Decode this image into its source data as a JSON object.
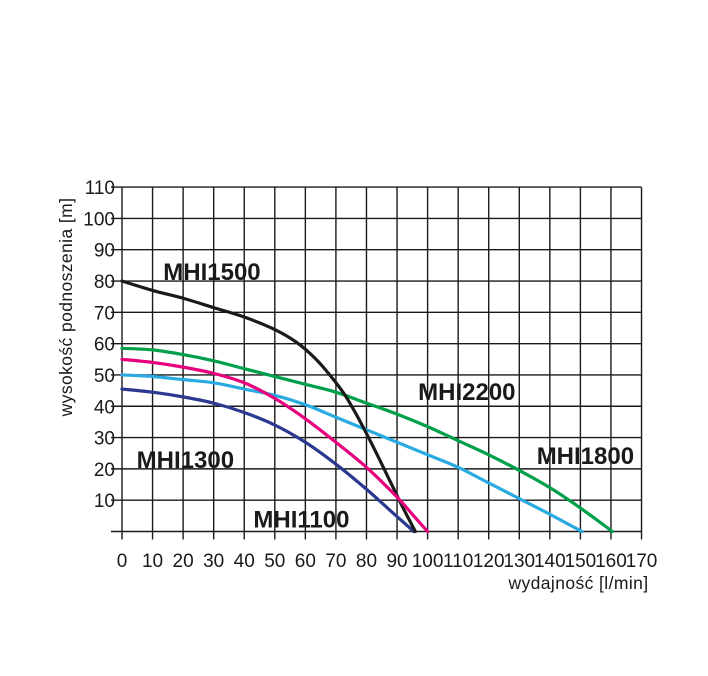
{
  "page": {
    "background": "#ffffff",
    "text_color": "#1a1a1a",
    "grid_color": "#1a1a1a"
  },
  "chart_data": {
    "type": "line",
    "title": "",
    "xlabel": "wydajność [l/min]",
    "ylabel": "wysokość podnoszenia [m]",
    "xlim": [
      0,
      170
    ],
    "ylim": [
      0,
      110
    ],
    "x_ticks": [
      0,
      10,
      20,
      30,
      40,
      50,
      60,
      70,
      80,
      90,
      100,
      110,
      120,
      130,
      140,
      150,
      160,
      170
    ],
    "y_ticks": [
      10,
      20,
      30,
      40,
      50,
      60,
      70,
      80,
      90,
      100,
      110
    ],
    "grid": true,
    "legend_position": "labels-on-curves",
    "series": [
      {
        "name": "MHI1100",
        "color": "#2b3990",
        "label_anchor": {
          "x": 43.0,
          "y": 1.2
        },
        "points": [
          [
            0,
            45.5
          ],
          [
            10,
            44.5
          ],
          [
            20,
            43
          ],
          [
            30,
            41
          ],
          [
            40,
            38
          ],
          [
            50,
            34
          ],
          [
            60,
            28.5
          ],
          [
            70,
            21.5
          ],
          [
            80,
            13.5
          ],
          [
            88,
            6.5
          ],
          [
            95.5,
            0
          ]
        ]
      },
      {
        "name": "MHI2200",
        "color": "#00a04a",
        "label_anchor": {
          "x": 96.9,
          "y": 42.0
        },
        "points": [
          [
            0,
            58.5
          ],
          [
            10,
            58
          ],
          [
            20,
            56.5
          ],
          [
            30,
            54.5
          ],
          [
            40,
            52
          ],
          [
            50,
            49.5
          ],
          [
            60,
            47
          ],
          [
            70,
            44.5
          ],
          [
            80,
            41
          ],
          [
            90,
            37.5
          ],
          [
            100,
            33.5
          ],
          [
            110,
            29
          ],
          [
            120,
            24.5
          ],
          [
            130,
            19.5
          ],
          [
            140,
            14
          ],
          [
            150,
            7.5
          ],
          [
            160.5,
            0
          ]
        ]
      },
      {
        "name": "MHI1800",
        "color": "#29abe2",
        "label_anchor": {
          "x": 135.7,
          "y": 21.6
        },
        "points": [
          [
            0,
            50
          ],
          [
            10,
            49.5
          ],
          [
            20,
            48.5
          ],
          [
            30,
            47.5
          ],
          [
            40,
            45.5
          ],
          [
            50,
            43.5
          ],
          [
            60,
            40.5
          ],
          [
            70,
            36.5
          ],
          [
            80,
            32.5
          ],
          [
            90,
            28.5
          ],
          [
            100,
            24.5
          ],
          [
            110,
            20.5
          ],
          [
            120,
            15.5
          ],
          [
            130,
            10.5
          ],
          [
            140,
            5.5
          ],
          [
            150.5,
            0
          ]
        ]
      },
      {
        "name": "MHI1500",
        "color": "#1a1a1a",
        "label_anchor": {
          "x": 13.5,
          "y": 80.3
        },
        "points": [
          [
            0,
            80
          ],
          [
            10,
            77
          ],
          [
            20,
            74.5
          ],
          [
            30,
            71.5
          ],
          [
            40,
            68.5
          ],
          [
            50,
            64.5
          ],
          [
            57,
            60.5
          ],
          [
            63,
            55.5
          ],
          [
            68,
            50
          ],
          [
            73,
            43.5
          ],
          [
            78,
            35
          ],
          [
            83,
            25.5
          ],
          [
            88,
            15.5
          ],
          [
            92,
            7.5
          ],
          [
            96,
            0
          ]
        ]
      },
      {
        "name": "MHI1300",
        "color": "#e6007e",
        "label_anchor": {
          "x": 4.8,
          "y": 20.3
        },
        "points": [
          [
            0,
            55
          ],
          [
            10,
            54
          ],
          [
            20,
            52.5
          ],
          [
            30,
            50.5
          ],
          [
            40,
            47.5
          ],
          [
            50,
            42.5
          ],
          [
            60,
            36
          ],
          [
            70,
            28.5
          ],
          [
            80,
            20.5
          ],
          [
            90,
            11
          ],
          [
            95,
            5.5
          ],
          [
            100,
            0
          ]
        ]
      }
    ]
  }
}
